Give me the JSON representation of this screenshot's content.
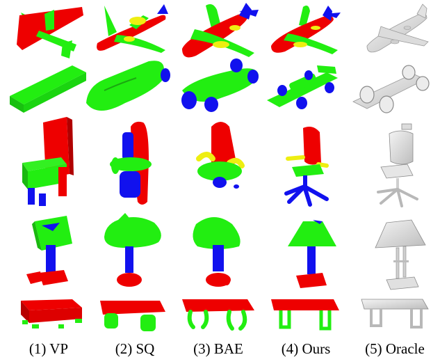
{
  "figure": {
    "columns": [
      {
        "label": "(1) VP"
      },
      {
        "label": "(2) SQ"
      },
      {
        "label": "(3) BAE"
      },
      {
        "label": "(4) Ours"
      },
      {
        "label": "(5) Oracle"
      }
    ],
    "rows": [
      {
        "object": "airplane"
      },
      {
        "object": "race-car"
      },
      {
        "object": "chair"
      },
      {
        "object": "lamp"
      },
      {
        "object": "table"
      }
    ],
    "colors": {
      "red": "#ee0000",
      "green": "#22ee11",
      "blue": "#1111ee",
      "yellow": "#eeee11",
      "oracle": "#d8d8d8",
      "oracle_edge": "#9a9a9a"
    }
  }
}
